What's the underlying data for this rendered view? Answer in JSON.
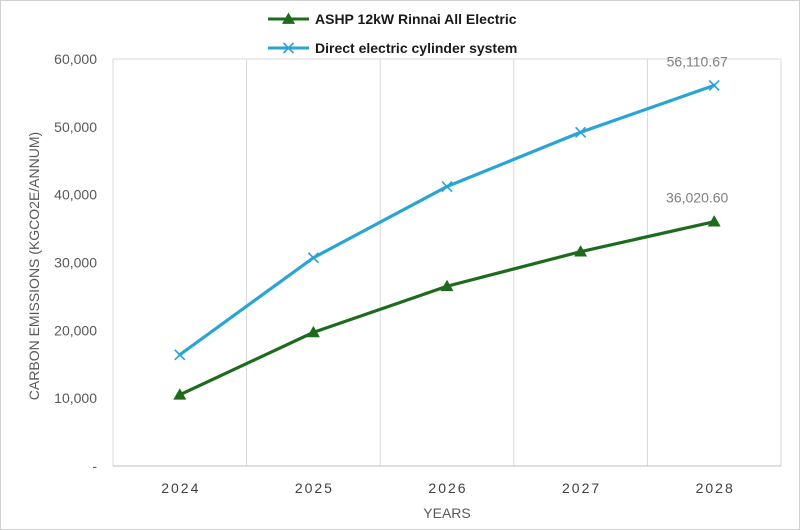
{
  "chart_data": {
    "type": "line",
    "title": "",
    "xlabel": "YEARS",
    "ylabel": "CARBON EMISSIONS (KGCO2E/ANNUM)",
    "categories": [
      "2024",
      "2025",
      "2026",
      "2027",
      "2028"
    ],
    "y_ticks": [
      0,
      10000,
      20000,
      30000,
      40000,
      50000,
      60000
    ],
    "y_tick_labels": [
      "-",
      "10,000",
      "20,000",
      "30,000",
      "40,000",
      "50,000",
      "60,000"
    ],
    "ylim": [
      0,
      60000
    ],
    "grid": "vertical",
    "legend_position": "top",
    "series": [
      {
        "name": "ASHP 12kW Rinnai All Electric",
        "color": "#1e6b1e",
        "marker": "triangle",
        "values": [
          10500,
          19700,
          26500,
          31600,
          36020.6
        ],
        "end_label": "36,020.60"
      },
      {
        "name": "Direct electric cylinder system",
        "color": "#2aa4d5",
        "marker": "x",
        "values": [
          16400,
          30700,
          41200,
          49200,
          56110.67
        ],
        "end_label": "56,110.67"
      }
    ]
  }
}
